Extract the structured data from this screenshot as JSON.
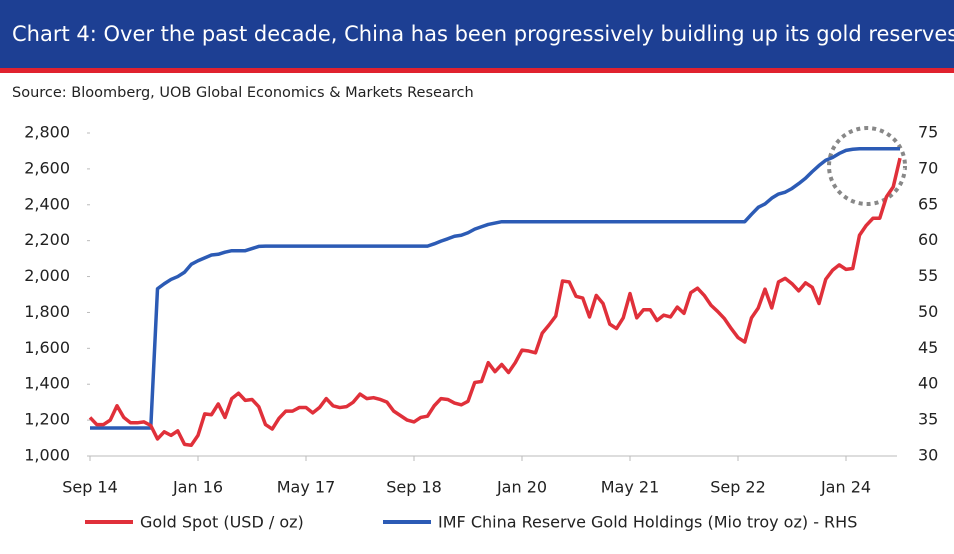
{
  "chart_data": {
    "type": "line",
    "title": "Chart 4: Over the past decade, China has been progressively buidling up its gold reserves",
    "subtitle": "Source: Bloomberg, UOB Global Economics & Markets Research",
    "categories": [
      "Sep 14",
      null,
      null,
      null,
      null,
      null,
      null,
      null,
      null,
      null,
      null,
      null,
      null,
      null,
      null,
      null,
      "Jan 16",
      null,
      null,
      null,
      null,
      null,
      null,
      null,
      null,
      null,
      null,
      null,
      null,
      null,
      null,
      null,
      "May 17",
      null,
      null,
      null,
      null,
      null,
      null,
      null,
      null,
      null,
      null,
      null,
      null,
      null,
      null,
      null,
      "Sep 18",
      null,
      null,
      null,
      null,
      null,
      null,
      null,
      null,
      null,
      null,
      null,
      null,
      null,
      null,
      null,
      "Jan 20",
      null,
      null,
      null,
      null,
      null,
      null,
      null,
      null,
      null,
      null,
      null,
      null,
      null,
      null,
      null,
      "May 21",
      null,
      null,
      null,
      null,
      null,
      null,
      null,
      null,
      null,
      null,
      null,
      null,
      null,
      null,
      null,
      "Sep 22",
      null,
      null,
      null,
      null,
      null,
      null,
      null,
      null,
      null,
      null,
      null,
      null,
      null,
      null,
      null,
      "Jan 24",
      null,
      null,
      null,
      null,
      null,
      null,
      null,
      null
    ],
    "series": [
      {
        "name": "Gold Spot (USD / oz)",
        "color": "#e0303a",
        "values": [
          1215,
          1175,
          1175,
          1200,
          1280,
          1215,
          1185,
          1185,
          1190,
          1170,
          1095,
          1135,
          1115,
          1140,
          1065,
          1060,
          1115,
          1235,
          1230,
          1290,
          1215,
          1320,
          1350,
          1310,
          1315,
          1275,
          1175,
          1150,
          1210,
          1250,
          1250,
          1270,
          1270,
          1240,
          1270,
          1320,
          1280,
          1270,
          1275,
          1300,
          1345,
          1320,
          1325,
          1315,
          1300,
          1250,
          1225,
          1200,
          1190,
          1215,
          1222,
          1280,
          1320,
          1315,
          1295,
          1285,
          1305,
          1410,
          1415,
          1520,
          1470,
          1510,
          1465,
          1520,
          1590,
          1585,
          1575,
          1685,
          1730,
          1780,
          1975,
          1970,
          1890,
          1880,
          1775,
          1895,
          1850,
          1735,
          1710,
          1770,
          1905,
          1770,
          1815,
          1815,
          1755,
          1785,
          1775,
          1830,
          1795,
          1910,
          1935,
          1895,
          1840,
          1805,
          1765,
          1710,
          1660,
          1635,
          1770,
          1825,
          1930,
          1825,
          1970,
          1990,
          1960,
          1920,
          1965,
          1940,
          1850,
          1985,
          2035,
          2065,
          2040,
          2045,
          2230,
          2285,
          2325,
          2325,
          2445,
          2500,
          2660
        ]
      },
      {
        "name": "IMF China Reserve Gold Holdings (Mio troy oz) - RHS",
        "color": "#2c5bb5",
        "axis": "y2",
        "values": [
          33.9,
          33.9,
          33.9,
          33.9,
          33.9,
          33.9,
          33.9,
          33.9,
          33.9,
          33.9,
          53.3,
          54.0,
          54.6,
          55.0,
          55.6,
          56.7,
          57.2,
          57.6,
          58.0,
          58.1,
          58.4,
          58.6,
          58.6,
          58.6,
          58.9,
          59.2,
          59.24,
          59.24,
          59.24,
          59.24,
          59.24,
          59.24,
          59.24,
          59.24,
          59.24,
          59.24,
          59.24,
          59.24,
          59.24,
          59.24,
          59.24,
          59.24,
          59.24,
          59.24,
          59.24,
          59.24,
          59.24,
          59.24,
          59.24,
          59.24,
          59.24,
          59.56,
          59.94,
          60.26,
          60.62,
          60.75,
          61.1,
          61.61,
          61.94,
          62.26,
          62.45,
          62.64,
          62.64,
          62.64,
          62.64,
          62.64,
          62.64,
          62.64,
          62.64,
          62.64,
          62.64,
          62.64,
          62.64,
          62.64,
          62.64,
          62.64,
          62.64,
          62.64,
          62.64,
          62.64,
          62.64,
          62.64,
          62.64,
          62.64,
          62.64,
          62.64,
          62.64,
          62.64,
          62.64,
          62.64,
          62.64,
          62.64,
          62.64,
          62.64,
          62.64,
          62.64,
          62.64,
          62.64,
          63.67,
          64.64,
          65.12,
          65.92,
          66.5,
          66.76,
          67.27,
          67.95,
          68.69,
          69.62,
          70.47,
          71.2,
          71.58,
          72.15,
          72.58,
          72.74,
          72.8,
          72.8,
          72.8,
          72.8,
          72.8,
          72.8,
          72.8
        ]
      }
    ],
    "ylim": [
      1000,
      2800
    ],
    "yticks": [
      {
        "value": 1000,
        "label": "1,000"
      },
      {
        "value": 1200,
        "label": "1,200"
      },
      {
        "value": 1400,
        "label": "1,400"
      },
      {
        "value": 1600,
        "label": "1,600"
      },
      {
        "value": 1800,
        "label": "1,800"
      },
      {
        "value": 2000,
        "label": "2,000"
      },
      {
        "value": 2200,
        "label": "2,200"
      },
      {
        "value": 2400,
        "label": "2,400"
      },
      {
        "value": 2600,
        "label": "2,600"
      },
      {
        "value": 2800,
        "label": "2,800"
      }
    ],
    "y2lim": [
      30,
      75
    ],
    "y2ticks": [
      30,
      35,
      40,
      45,
      50,
      55,
      60,
      65,
      70,
      75
    ],
    "grid": false
  }
}
